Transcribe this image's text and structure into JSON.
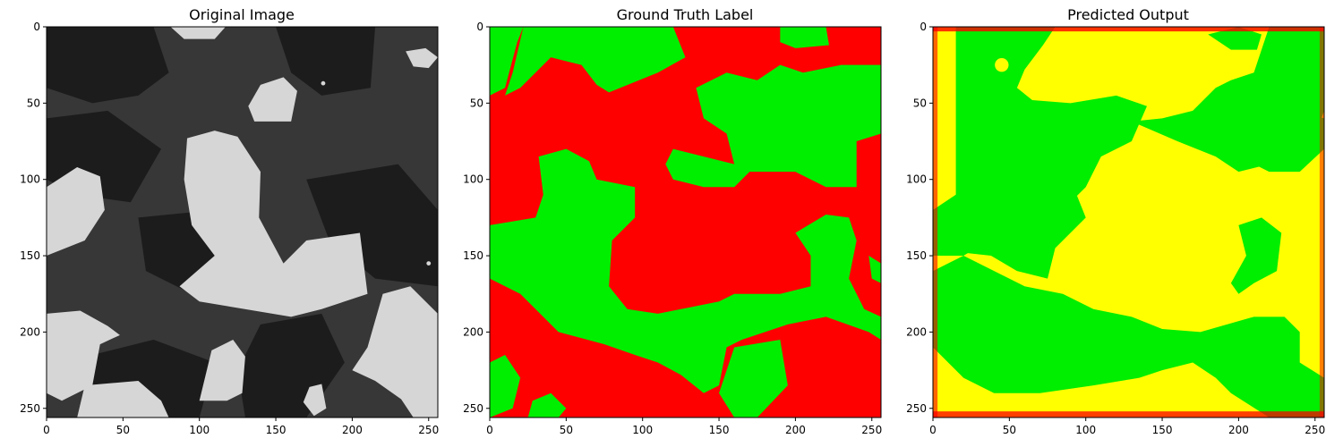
{
  "panels": [
    {
      "title": "Original Image",
      "kind": "grayscale",
      "colors": {
        "dark": "#1c1c1c",
        "mid": "#373737",
        "light": "#d6d6d6"
      }
    },
    {
      "title": "Ground Truth Label",
      "kind": "label",
      "colors": {
        "base": "#ff0000",
        "blob": "#00ee00"
      }
    },
    {
      "title": "Predicted Output",
      "kind": "label",
      "colors": {
        "base": "#ffff00",
        "blob": "#00ee00",
        "edge": "#ff0000"
      }
    }
  ],
  "axes": {
    "x_ticks": [
      "0",
      "50",
      "100",
      "150",
      "200",
      "250"
    ],
    "y_ticks": [
      "0",
      "50",
      "100",
      "150",
      "200",
      "250"
    ],
    "xlim": [
      0,
      256
    ],
    "ylim": [
      256,
      0
    ],
    "tick_values": [
      0,
      50,
      100,
      150,
      200,
      250
    ]
  }
}
